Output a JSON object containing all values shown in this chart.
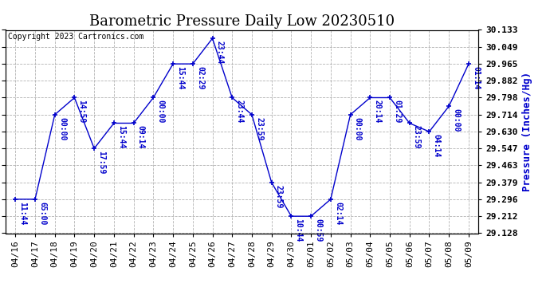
{
  "title": "Barometric Pressure Daily Low 20230510",
  "ylabel": "Pressure (Inches/Hg)",
  "copyright": "Copyright 2023 Cartronics.com",
  "line_color": "#0000cc",
  "marker_color": "#0000cc",
  "background_color": "#ffffff",
  "grid_color": "#aaaaaa",
  "text_color": "#0000cc",
  "ylim_min": 29.128,
  "ylim_max": 30.133,
  "yticks": [
    29.128,
    29.212,
    29.296,
    29.379,
    29.463,
    29.547,
    29.63,
    29.714,
    29.798,
    29.882,
    29.965,
    30.049,
    30.133
  ],
  "dates": [
    "04/16",
    "04/17",
    "04/18",
    "04/19",
    "04/20",
    "04/21",
    "04/22",
    "04/23",
    "04/24",
    "04/25",
    "04/26",
    "04/27",
    "04/28",
    "04/29",
    "04/30",
    "05/01",
    "05/02",
    "05/03",
    "05/04",
    "05/05",
    "05/06",
    "05/07",
    "05/08",
    "05/09"
  ],
  "values": [
    29.296,
    29.296,
    29.714,
    29.798,
    29.547,
    29.672,
    29.672,
    29.798,
    29.965,
    29.965,
    30.091,
    29.798,
    29.714,
    29.379,
    29.212,
    29.212,
    29.296,
    29.714,
    29.798,
    29.798,
    29.672,
    29.63,
    29.756,
    29.965
  ],
  "time_labels": [
    "11:44",
    "65:00",
    "00:00",
    "14:59",
    "17:59",
    "15:44",
    "09:14",
    "00:00",
    "15:44",
    "02:29",
    "23:44",
    "23:44",
    "23:59",
    "23:59",
    "10:44",
    "00:59",
    "02:14",
    "00:00",
    "20:14",
    "01:29",
    "23:59",
    "04:14",
    "00:00",
    "01:14"
  ],
  "title_fontsize": 13,
  "ylabel_fontsize": 9,
  "tick_fontsize": 8,
  "time_label_fontsize": 7,
  "copyright_fontsize": 7
}
